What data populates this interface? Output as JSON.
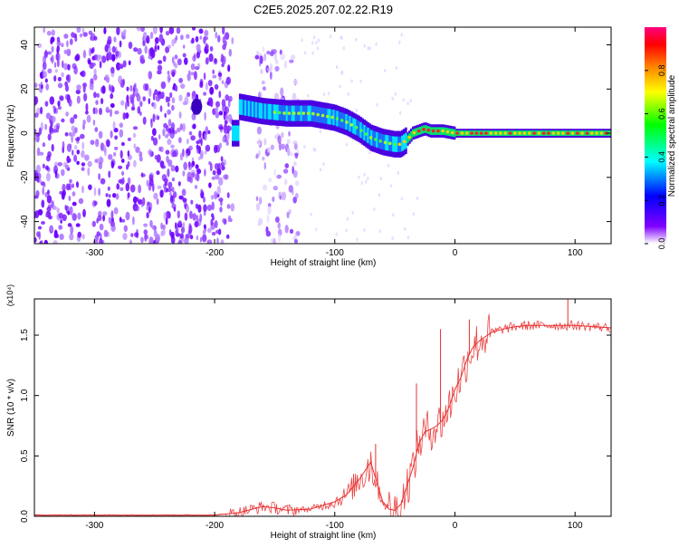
{
  "title": "C2E5.2025.207.02.22.R19",
  "spectrogram": {
    "type": "heatmap",
    "xlabel": "Height of straight line (km)",
    "ylabel": "Frequency (Hz)",
    "xlim": [
      -350,
      130
    ],
    "ylim": [
      -50,
      48
    ],
    "xticks": [
      -300,
      -200,
      -100,
      0,
      100
    ],
    "yticks": [
      -40,
      -20,
      0,
      20,
      40
    ],
    "colorbar": {
      "label": "Normalized spectral amplitude",
      "ticks": [
        "0.0",
        "0.2",
        "0.4",
        "0.6",
        "0.8"
      ],
      "range": [
        0,
        1
      ],
      "colors": [
        "#ffffff",
        "#8000ff",
        "#0000ff",
        "#00ffff",
        "#00ff00",
        "#ffff00",
        "#ff8000",
        "#ff0000",
        "#ff0080"
      ]
    },
    "trace": {
      "x": [
        -180,
        -160,
        -140,
        -120,
        -100,
        -90,
        -80,
        -70,
        -60,
        -50,
        -45,
        -40,
        -35,
        -30,
        -25,
        -20,
        -10,
        0,
        50,
        100,
        130
      ],
      "y": [
        12,
        10,
        9,
        9,
        7,
        5,
        2,
        -2,
        -4,
        -5,
        -5,
        -3,
        0,
        1,
        2,
        1,
        1,
        0,
        0,
        0,
        0
      ]
    },
    "noise_regions": [
      {
        "x": [
          -350,
          -185
        ],
        "y": [
          -50,
          48
        ]
      },
      {
        "x": [
          -165,
          -130
        ],
        "y": [
          -50,
          40
        ]
      }
    ]
  },
  "snr_chart": {
    "type": "line",
    "xlabel": "Height of straight line (km)",
    "ylabel": "SNR (10 * v/v)",
    "exponent_label": "(x10⁴)",
    "xlim": [
      -350,
      130
    ],
    "ylim": [
      0,
      1.8
    ],
    "xticks": [
      -300,
      -200,
      -100,
      0,
      100
    ],
    "yticks": [
      "0.0",
      "0.5",
      "1.0",
      "1.5"
    ],
    "color": "#e83030",
    "series": {
      "x": [
        -350,
        -200,
        -180,
        -160,
        -150,
        -140,
        -120,
        -100,
        -90,
        -80,
        -70,
        -65,
        -60,
        -55,
        -50,
        -45,
        -40,
        -35,
        -30,
        -25,
        -20,
        -15,
        -10,
        -5,
        0,
        5,
        10,
        15,
        20,
        30,
        40,
        50,
        60,
        80,
        100,
        130
      ],
      "y": [
        0.01,
        0.01,
        0.03,
        0.08,
        0.07,
        0.05,
        0.06,
        0.12,
        0.18,
        0.3,
        0.45,
        0.28,
        0.12,
        0.06,
        0.05,
        0.1,
        0.25,
        0.4,
        0.6,
        0.7,
        0.72,
        0.75,
        0.8,
        0.9,
        1.05,
        1.15,
        1.3,
        1.4,
        1.45,
        1.52,
        1.55,
        1.57,
        1.58,
        1.58,
        1.58,
        1.56
      ]
    },
    "spikes": [
      {
        "x": -66,
        "y": 0.6
      },
      {
        "x": -32,
        "y": 1.1
      },
      {
        "x": -12,
        "y": 1.55
      },
      {
        "x": 12,
        "y": 1.63
      },
      {
        "x": 94,
        "y": 1.8
      }
    ]
  }
}
